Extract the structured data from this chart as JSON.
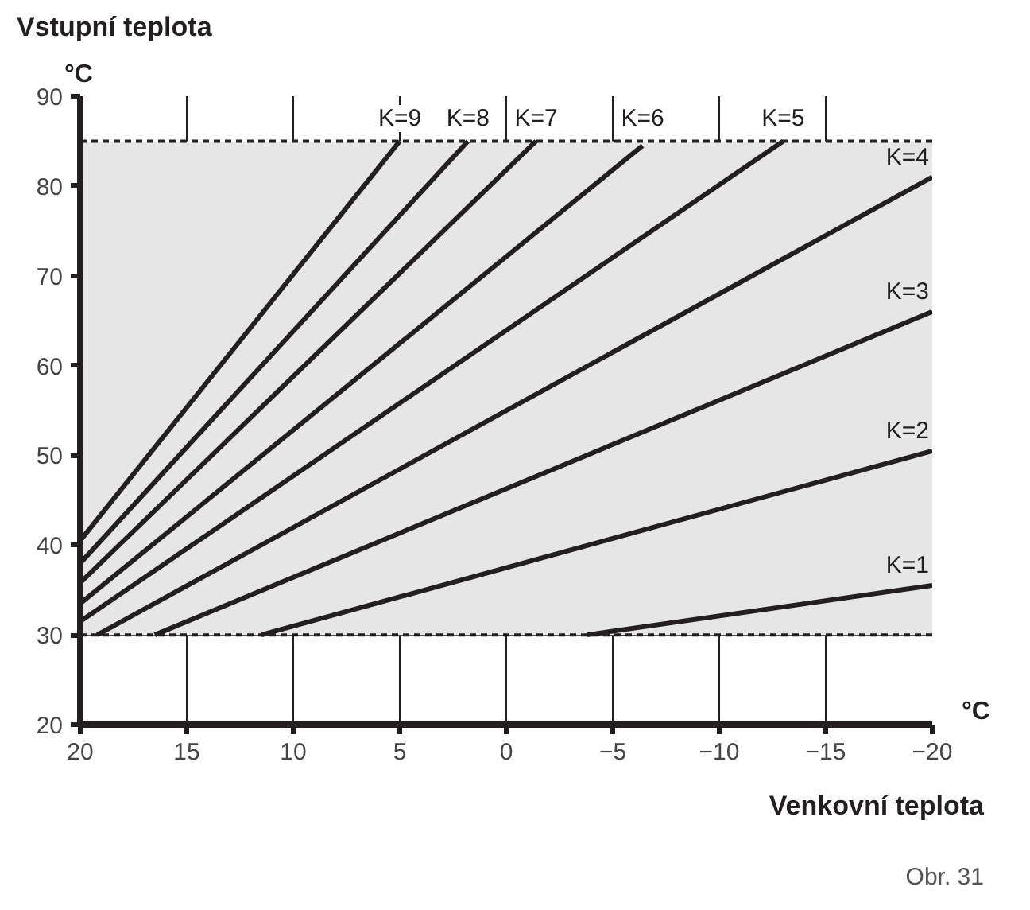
{
  "chart_data": {
    "type": "line",
    "title": "Vstupní teplota",
    "ylabel": "°C",
    "xlabel": "Venkovní teplota",
    "annotations": [
      "°C",
      "Obr. 31"
    ],
    "xlim": [
      20,
      -20
    ],
    "xticks": [
      20,
      15,
      10,
      5,
      0,
      -5,
      -10,
      -15,
      -20
    ],
    "ylim": [
      20,
      90
    ],
    "yticks": [
      20,
      30,
      40,
      50,
      60,
      70,
      80,
      90
    ],
    "grid": true,
    "marker": "none",
    "line_style": "solid",
    "bands": [
      {
        "axis": "y",
        "from": 30,
        "to": 85,
        "color": "#e6e6e6"
      }
    ],
    "ref_lines": [
      {
        "axis": "y",
        "value": 30,
        "line_style": "dashed",
        "color": "#231f20"
      },
      {
        "axis": "y",
        "value": 85,
        "line_style": "dashed",
        "color": "#231f20"
      }
    ],
    "series": [
      {
        "name": "K=1",
        "color": "#231f20",
        "x": [
          -3.8,
          -20
        ],
        "values": [
          30,
          35.5
        ]
      },
      {
        "name": "K=2",
        "color": "#231f20",
        "x": [
          11.5,
          -20
        ],
        "values": [
          30,
          50.5
        ]
      },
      {
        "name": "K=3",
        "color": "#231f20",
        "x": [
          16.5,
          -20
        ],
        "values": [
          30,
          66
        ]
      },
      {
        "name": "K=4",
        "color": "#231f20",
        "x": [
          19.2,
          -20
        ],
        "values": [
          30,
          81
        ]
      },
      {
        "name": "K=5",
        "color": "#231f20",
        "x": [
          20,
          -13
        ],
        "values": [
          31.5,
          85
        ]
      },
      {
        "name": "K=6",
        "color": "#231f20",
        "x": [
          20,
          -6.4
        ],
        "values": [
          33.5,
          84.5
        ]
      },
      {
        "name": "K=7",
        "color": "#231f20",
        "x": [
          20,
          -1.4
        ],
        "values": [
          35.8,
          85
        ]
      },
      {
        "name": "K=8",
        "color": "#231f20",
        "x": [
          20,
          1.8
        ],
        "values": [
          38,
          85
        ]
      },
      {
        "name": "K=9",
        "color": "#231f20",
        "x": [
          20,
          5
        ],
        "values": [
          40.5,
          85
        ]
      }
    ]
  }
}
